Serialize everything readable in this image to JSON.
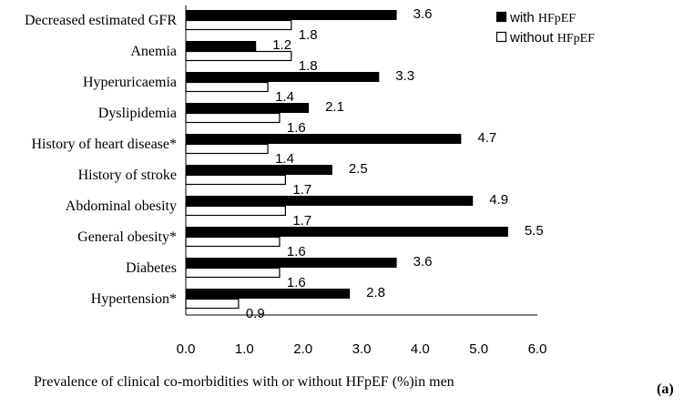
{
  "chart_data": {
    "type": "bar",
    "orientation": "horizontal",
    "categories": [
      "Decreased estimated GFR",
      "Anemia",
      "Hyperuricaemia",
      "Dyslipidemia",
      "History of heart disease*",
      "History of stroke",
      "Abdominal obesity",
      "General obesity*",
      "Diabetes",
      "Hypertension*"
    ],
    "series": [
      {
        "name": "with HFpEF",
        "color": "#000000",
        "values": [
          3.6,
          1.2,
          3.3,
          2.1,
          4.7,
          2.5,
          4.9,
          5.5,
          3.6,
          2.8
        ]
      },
      {
        "name": "without HFpEF",
        "color": "#ffffff",
        "values": [
          1.8,
          1.8,
          1.4,
          1.6,
          1.4,
          1.7,
          1.7,
          1.6,
          1.6,
          0.9
        ]
      }
    ],
    "xlim": [
      0,
      6
    ],
    "xticks": [
      "0.0",
      "1.0",
      "2.0",
      "3.0",
      "4.0",
      "5.0",
      "6.0"
    ],
    "xlabel": "Prevalence of clinical co-morbidities with or without  HFpEF (%)in men",
    "legend": [
      {
        "prefix": "with ",
        "abbr": "HFpEF"
      },
      {
        "prefix": "without ",
        "abbr": "HFpEF"
      }
    ],
    "legend_position": "top-right",
    "grid": false,
    "panel_label": "(a)"
  }
}
